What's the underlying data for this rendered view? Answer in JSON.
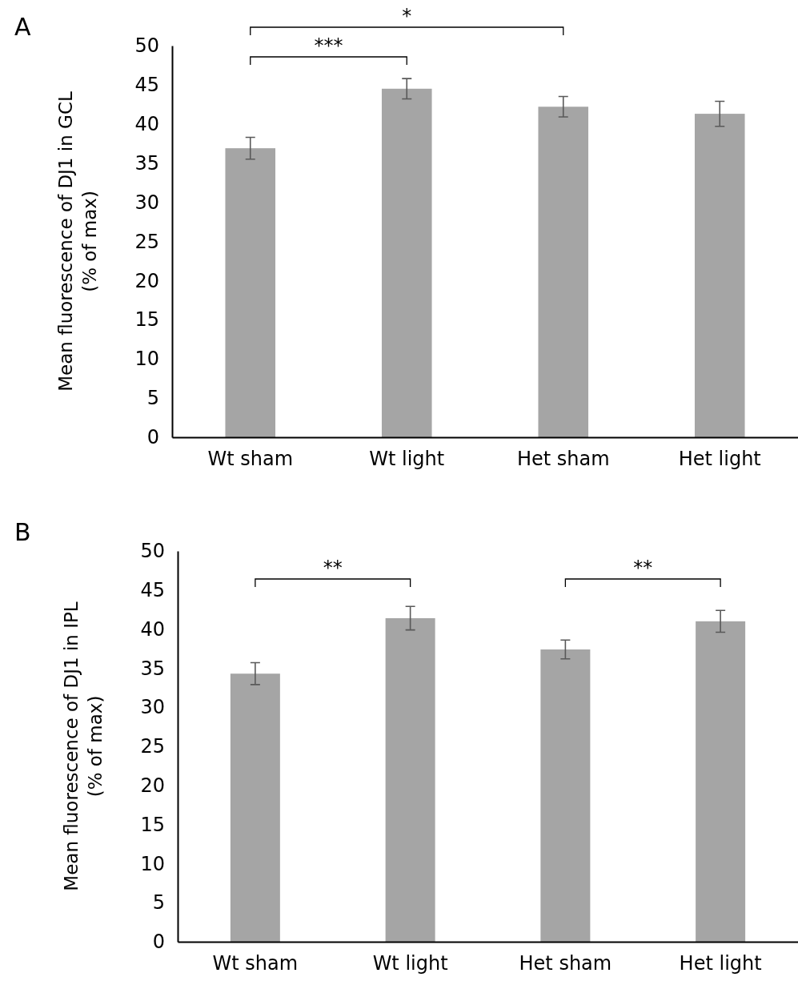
{
  "chart_data": [
    {
      "type": "bar",
      "title": "A",
      "ylabel": "Mean fluorescence of DJ1 in GCL\n(% of max)",
      "categories": [
        "Wt sham",
        "Wt light",
        "Het sham",
        "Het light"
      ],
      "values": [
        36.9,
        44.5,
        42.2,
        41.3
      ],
      "errors": [
        1.4,
        1.3,
        1.3,
        1.6
      ],
      "color": "#a5a5a5",
      "ylim": [
        0,
        50
      ],
      "yticks": [
        0,
        5,
        10,
        15,
        20,
        25,
        30,
        35,
        40,
        45,
        50
      ],
      "grid": false,
      "annotations": [
        "***",
        "*"
      ]
    },
    {
      "type": "bar",
      "title": "B",
      "ylabel": "Mean fluorescence of DJ1 in IPL\n(% of max)",
      "categories": [
        "Wt sham",
        "Wt light",
        "Het sham",
        "Het light"
      ],
      "values": [
        34.3,
        41.4,
        37.4,
        41.0
      ],
      "errors": [
        1.4,
        1.5,
        1.2,
        1.4
      ],
      "color": "#a5a5a5",
      "ylim": [
        0,
        50
      ],
      "yticks": [
        0,
        5,
        10,
        15,
        20,
        25,
        30,
        35,
        40,
        45,
        50
      ],
      "grid": false,
      "annotations": [
        "**",
        "**"
      ]
    }
  ]
}
